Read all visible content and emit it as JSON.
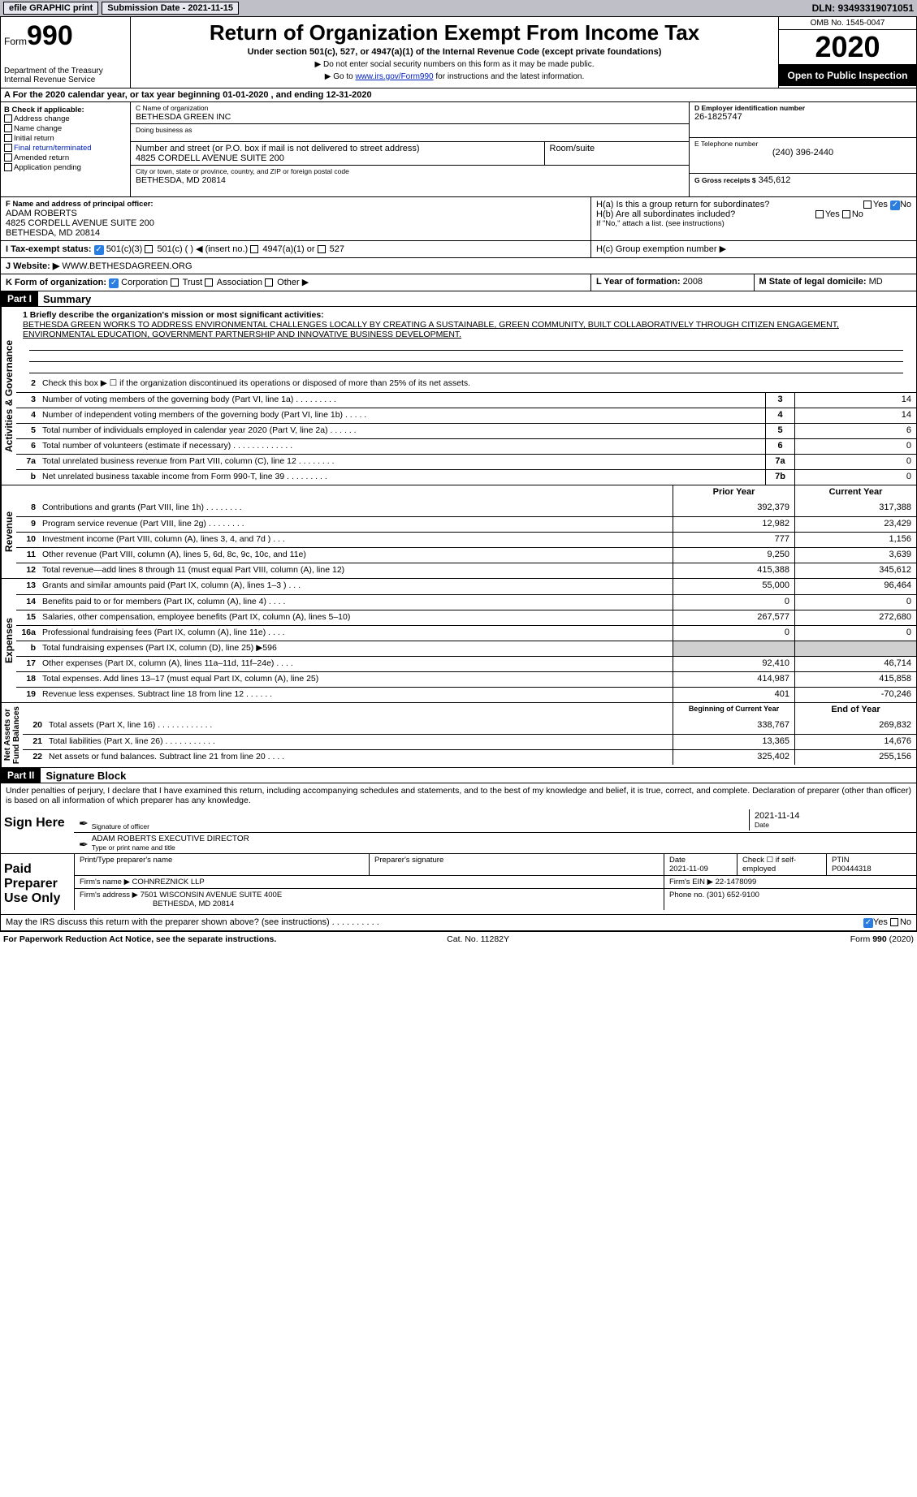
{
  "topbar": {
    "efile": "efile GRAPHIC print",
    "submission_label": "Submission Date - 2021-11-15",
    "dln": "DLN: 93493319071051"
  },
  "header": {
    "form_word": "Form",
    "form_num": "990",
    "dept": "Department of the Treasury\nInternal Revenue Service",
    "title": "Return of Organization Exempt From Income Tax",
    "subtitle": "Under section 501(c), 527, or 4947(a)(1) of the Internal Revenue Code (except private foundations)",
    "note1": "▶ Do not enter social security numbers on this form as it may be made public.",
    "note2_pre": "▶ Go to ",
    "note2_link": "www.irs.gov/Form990",
    "note2_post": " for instructions and the latest information.",
    "omb": "OMB No. 1545-0047",
    "year": "2020",
    "open": "Open to Public Inspection"
  },
  "periodA": "A For the 2020 calendar year, or tax year beginning 01-01-2020   , and ending 12-31-2020",
  "boxB": {
    "title": "B Check if applicable:",
    "opts": [
      "Address change",
      "Name change",
      "Initial return",
      "Final return/terminated",
      "Amended return",
      "Application pending"
    ]
  },
  "boxC": {
    "name_lbl": "C Name of organization",
    "name": "BETHESDA GREEN INC",
    "dba_lbl": "Doing business as",
    "dba": "",
    "addr_lbl": "Number and street (or P.O. box if mail is not delivered to street address)",
    "room_lbl": "Room/suite",
    "addr": "4825 CORDELL AVENUE SUITE 200",
    "city_lbl": "City or town, state or province, country, and ZIP or foreign postal code",
    "city": "BETHESDA, MD  20814"
  },
  "boxD": {
    "lbl": "D Employer identification number",
    "val": "26-1825747"
  },
  "boxE": {
    "lbl": "E Telephone number",
    "val": "(240) 396-2440"
  },
  "boxG": {
    "lbl": "G Gross receipts $",
    "val": "345,612"
  },
  "boxF": {
    "lbl": "F  Name and address of principal officer:",
    "name": "ADAM ROBERTS",
    "addr1": "4825 CORDELL AVENUE SUITE 200",
    "addr2": "BETHESDA, MD  20814"
  },
  "boxH": {
    "a": "H(a)  Is this a group return for subordinates?",
    "a_ans": "No",
    "b": "H(b)  Are all subordinates included?",
    "b_note": "If \"No,\" attach a list. (see instructions)",
    "c": "H(c)  Group exemption number ▶"
  },
  "boxI": {
    "lbl": "I    Tax-exempt status:",
    "opts": [
      "501(c)(3)",
      "501(c) (  ) ◀ (insert no.)",
      "4947(a)(1) or",
      "527"
    ]
  },
  "boxJ": {
    "lbl": "J    Website: ▶",
    "val": "WWW.BETHESDAGREEN.ORG"
  },
  "boxK": {
    "lbl": "K Form of organization:",
    "opts": [
      "Corporation",
      "Trust",
      "Association",
      "Other ▶"
    ]
  },
  "boxL": {
    "lbl": "L Year of formation:",
    "val": "2008"
  },
  "boxM": {
    "lbl": "M State of legal domicile:",
    "val": "MD"
  },
  "part1": {
    "bar": "Part I",
    "title": "Summary"
  },
  "mission": {
    "lbl": "1  Briefly describe the organization's mission or most significant activities:",
    "txt": "BETHESDA GREEN WORKS TO ADDRESS ENVIRONMENTAL CHALLENGES LOCALLY BY CREATING A SUSTAINABLE, GREEN COMMUNITY, BUILT COLLABORATIVELY THROUGH CITIZEN ENGAGEMENT, ENVIRONMENTAL EDUCATION, GOVERNMENT PARTNERSHIP AND INNOVATIVE BUSINESS DEVELOPMENT."
  },
  "gov_label": "Activities & Governance",
  "gov_rows": [
    {
      "n": "2",
      "t": "Check this box ▶ ☐  if the organization discontinued its operations or disposed of more than 25% of its net assets.",
      "c": "",
      "v": ""
    },
    {
      "n": "3",
      "t": "Number of voting members of the governing body (Part VI, line 1a)   .    .    .    .    .    .    .    .    .",
      "c": "3",
      "v": "14"
    },
    {
      "n": "4",
      "t": "Number of independent voting members of the governing body (Part VI, line 1b)    .    .    .    .    .",
      "c": "4",
      "v": "14"
    },
    {
      "n": "5",
      "t": "Total number of individuals employed in calendar year 2020 (Part V, line 2a)    .    .    .    .    .    .",
      "c": "5",
      "v": "6"
    },
    {
      "n": "6",
      "t": "Total number of volunteers (estimate if necessary)    .    .    .    .    .    .    .    .    .    .    .    .    .",
      "c": "6",
      "v": "0"
    },
    {
      "n": "7a",
      "t": "Total unrelated business revenue from Part VIII, column (C), line 12   .    .    .    .    .    .    .    .",
      "c": "7a",
      "v": "0"
    },
    {
      "n": "b",
      "t": "Net unrelated business taxable income from Form 990-T, line 39    .    .    .    .    .    .    .    .    .",
      "c": "7b",
      "v": "0"
    }
  ],
  "col_hdr": {
    "py": "Prior Year",
    "cy": "Current Year"
  },
  "rev_label": "Revenue",
  "rev_rows": [
    {
      "n": "8",
      "t": "Contributions and grants (Part VIII, line 1h)   .    .    .    .    .    .    .    .",
      "py": "392,379",
      "cy": "317,388"
    },
    {
      "n": "9",
      "t": "Program service revenue (Part VIII, line 2g)   .    .    .    .    .    .    .    .",
      "py": "12,982",
      "cy": "23,429"
    },
    {
      "n": "10",
      "t": "Investment income (Part VIII, column (A), lines 3, 4, and 7d )   .    .    .",
      "py": "777",
      "cy": "1,156"
    },
    {
      "n": "11",
      "t": "Other revenue (Part VIII, column (A), lines 5, 6d, 8c, 9c, 10c, and 11e)",
      "py": "9,250",
      "cy": "3,639"
    },
    {
      "n": "12",
      "t": "Total revenue—add lines 8 through 11 (must equal Part VIII, column (A), line 12)",
      "py": "415,388",
      "cy": "345,612"
    }
  ],
  "exp_label": "Expenses",
  "exp_rows": [
    {
      "n": "13",
      "t": "Grants and similar amounts paid (Part IX, column (A), lines 1–3 )   .    .    .",
      "py": "55,000",
      "cy": "96,464"
    },
    {
      "n": "14",
      "t": "Benefits paid to or for members (Part IX, column (A), line 4)   .    .    .    .",
      "py": "0",
      "cy": "0"
    },
    {
      "n": "15",
      "t": "Salaries, other compensation, employee benefits (Part IX, column (A), lines 5–10)",
      "py": "267,577",
      "cy": "272,680"
    },
    {
      "n": "16a",
      "t": "Professional fundraising fees (Part IX, column (A), line 11e)   .    .    .    .",
      "py": "0",
      "cy": "0"
    },
    {
      "n": "b",
      "t": "Total fundraising expenses (Part IX, column (D), line 25) ▶596",
      "py": "",
      "cy": "",
      "shade": true
    },
    {
      "n": "17",
      "t": "Other expenses (Part IX, column (A), lines 11a–11d, 11f–24e)   .    .    .    .",
      "py": "92,410",
      "cy": "46,714"
    },
    {
      "n": "18",
      "t": "Total expenses. Add lines 13–17 (must equal Part IX, column (A), line 25)",
      "py": "414,987",
      "cy": "415,858"
    },
    {
      "n": "19",
      "t": "Revenue less expenses. Subtract line 18 from line 12   .    .    .    .    .    .",
      "py": "401",
      "cy": "-70,246"
    }
  ],
  "na_label": "Net Assets or\nFund Balances",
  "na_hdr": {
    "b": "Beginning of Current Year",
    "e": "End of Year"
  },
  "na_rows": [
    {
      "n": "20",
      "t": "Total assets (Part X, line 16)   .    .    .    .    .    .    .    .    .    .    .    .",
      "py": "338,767",
      "cy": "269,832"
    },
    {
      "n": "21",
      "t": "Total liabilities (Part X, line 26)   .    .    .    .    .    .    .    .    .    .    .",
      "py": "13,365",
      "cy": "14,676"
    },
    {
      "n": "22",
      "t": "Net assets or fund balances. Subtract line 21 from line 20   .    .    .    .",
      "py": "325,402",
      "cy": "255,156"
    }
  ],
  "part2": {
    "bar": "Part II",
    "title": "Signature Block"
  },
  "penalty": "Under penalties of perjury, I declare that I have examined this return, including accompanying schedules and statements, and to the best of my knowledge and belief, it is true, correct, and complete. Declaration of preparer (other than officer) is based on all information of which preparer has any knowledge.",
  "sign": {
    "here": "Sign Here",
    "sig_lbl": "Signature of officer",
    "date": "2021-11-14",
    "date_lbl": "Date",
    "name": "ADAM ROBERTS EXECUTIVE DIRECTOR",
    "name_lbl": "Type or print name and title"
  },
  "paid": {
    "title": "Paid Preparer Use Only",
    "pname_lbl": "Print/Type preparer's name",
    "psig_lbl": "Preparer's signature",
    "pdate_lbl": "Date",
    "pdate": "2021-11-09",
    "self_lbl": "Check ☐ if self-employed",
    "ptin_lbl": "PTIN",
    "ptin": "P00444318",
    "firm_lbl": "Firm's name    ▶",
    "firm": "COHNREZNICK LLP",
    "ein_lbl": "Firm's EIN ▶",
    "ein": "22-1478099",
    "faddr_lbl": "Firm's address ▶",
    "faddr1": "7501 WISCONSIN AVENUE SUITE 400E",
    "faddr2": "BETHESDA, MD  20814",
    "phone_lbl": "Phone no.",
    "phone": "(301) 652-9100"
  },
  "discuss": "May the IRS discuss this return with the preparer shown above? (see instructions)   .    .    .    .    .    .    .    .    .    .",
  "footer": {
    "l": "For Paperwork Reduction Act Notice, see the separate instructions.",
    "m": "Cat. No. 11282Y",
    "r": "Form 990 (2020)"
  }
}
